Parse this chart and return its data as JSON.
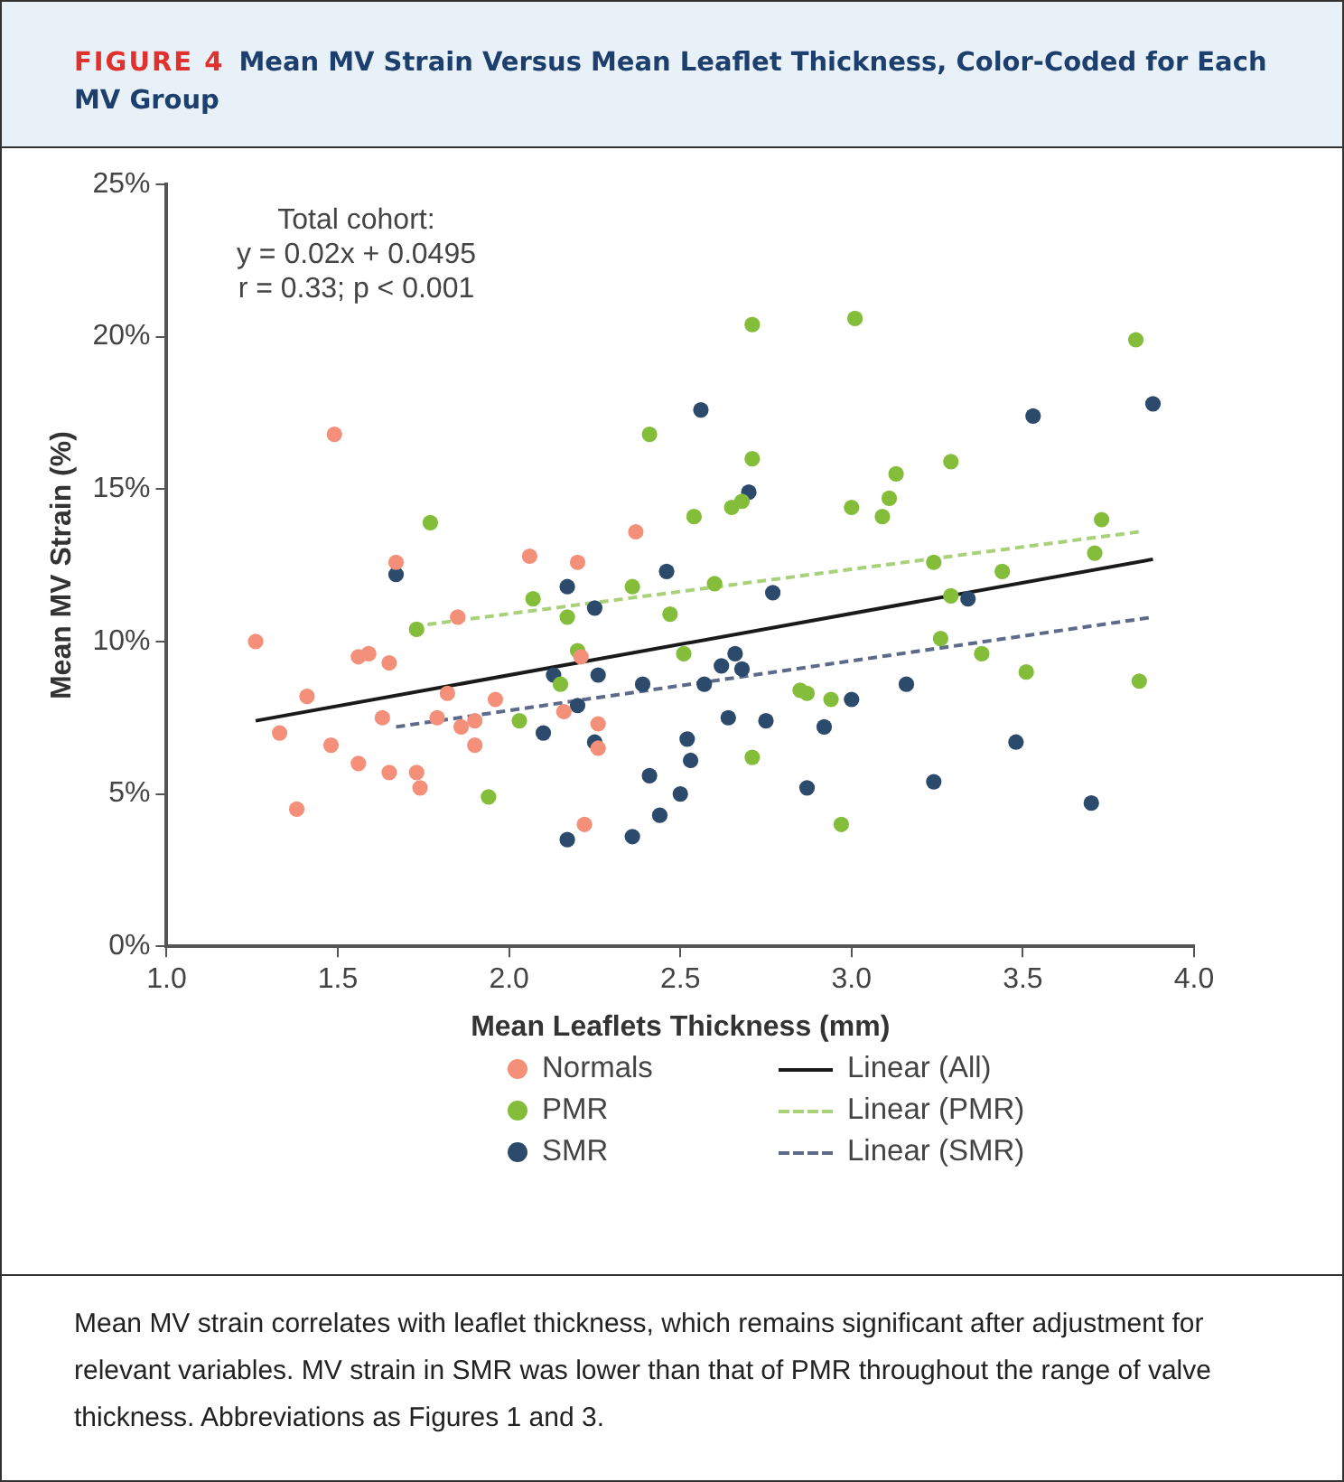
{
  "chart_data": {
    "type": "scatter",
    "title": "FIGURE 4",
    "subtitle": "Mean MV Strain Versus Mean Leaflet Thickness, Color-Coded for Each MV Group",
    "xlabel": "Mean Leaflets Thickness (mm)",
    "ylabel": "Mean MV Strain (%)",
    "xlim": [
      1,
      4
    ],
    "xticks": [
      {
        "value": 1,
        "label": "1.0"
      },
      {
        "value": 1.5,
        "label": "1.5"
      },
      {
        "value": 2,
        "label": "2.0"
      },
      {
        "value": 2.5,
        "label": "2.5"
      },
      {
        "value": 3,
        "label": "3.0"
      },
      {
        "value": 3.5,
        "label": "3.5"
      },
      {
        "value": 4,
        "label": "4.0"
      }
    ],
    "ylim": [
      0,
      25
    ],
    "yticks": [
      {
        "value": 0,
        "label": "0%"
      },
      {
        "value": 5,
        "label": "5%"
      },
      {
        "value": 10,
        "label": "10%"
      },
      {
        "value": 15,
        "label": "15%"
      },
      {
        "value": 20,
        "label": "20%"
      },
      {
        "value": 25,
        "label": "25%"
      }
    ],
    "grid": false,
    "legend": "bottom",
    "annotations": [
      "Total cohort:\ny = 0.02x + 0.0495\nr = 0.33; p < 0.001",
      "Mean MV strain correlates with leaflet thickness, which remains significant after adjustment for relevant variables. MV strain in SMR was lower than that of PMR throughout the range of valve thickness. Abbreviations as Figures 1 and 3."
    ],
    "series": [
      {
        "name": "Normals",
        "marker": "circle",
        "color": "#f4907a",
        "x": [
          1.26,
          1.33,
          1.38,
          1.41,
          1.48,
          1.49,
          1.56,
          1.59,
          1.56,
          1.65,
          1.63,
          1.65,
          1.67,
          1.73,
          1.74,
          1.79,
          1.82,
          1.85,
          1.86,
          1.9,
          1.9,
          1.96,
          2.06,
          2.2,
          2.16,
          2.21,
          2.26,
          2.26,
          2.22,
          2.37
        ],
        "values": [
          10.0,
          7.0,
          4.5,
          8.2,
          6.6,
          16.8,
          9.5,
          9.6,
          6.0,
          9.3,
          7.5,
          5.7,
          12.6,
          5.7,
          5.2,
          7.5,
          8.3,
          10.8,
          7.2,
          7.4,
          6.6,
          8.1,
          12.8,
          12.6,
          7.7,
          9.5,
          7.3,
          6.5,
          4.0,
          13.6
        ]
      },
      {
        "name": "Linear (All)",
        "type": "line",
        "color": "#1a1a1a",
        "line_style": "solid",
        "marker": "none",
        "x": [
          1.26,
          3.88
        ],
        "values": [
          7.4,
          12.7
        ]
      },
      {
        "name": "PMR",
        "marker": "circle",
        "color": "#84bd3a",
        "x": [
          1.77,
          1.73,
          1.94,
          2.03,
          2.07,
          2.17,
          2.2,
          2.15,
          2.36,
          2.41,
          2.47,
          2.51,
          2.54,
          2.6,
          2.65,
          2.68,
          2.71,
          2.71,
          2.71,
          2.85,
          2.87,
          2.94,
          2.97,
          3.0,
          3.01,
          3.09,
          3.11,
          3.13,
          3.24,
          3.26,
          3.29,
          3.29,
          3.38,
          3.44,
          3.51,
          3.71,
          3.73,
          3.83,
          3.84
        ],
        "values": [
          13.9,
          10.4,
          4.9,
          7.4,
          11.4,
          10.8,
          9.7,
          8.6,
          11.8,
          16.8,
          10.9,
          9.6,
          14.1,
          11.9,
          14.4,
          14.6,
          16.0,
          20.4,
          6.2,
          8.4,
          8.3,
          8.1,
          4.0,
          14.4,
          20.6,
          14.1,
          14.7,
          15.5,
          12.6,
          10.1,
          15.9,
          11.5,
          9.6,
          12.3,
          9.0,
          12.9,
          14.0,
          19.9,
          8.7
        ]
      },
      {
        "name": "Linear (PMR)",
        "type": "line",
        "color": "#a9d17a",
        "line_style": "dashed",
        "marker": "none",
        "x": [
          1.72,
          3.84
        ],
        "values": [
          10.5,
          13.6
        ]
      },
      {
        "name": "SMR",
        "marker": "circle",
        "color": "#2c4a6b",
        "x": [
          1.67,
          2.17,
          2.25,
          2.13,
          2.26,
          2.2,
          2.1,
          2.25,
          2.17,
          2.36,
          2.44,
          2.41,
          2.39,
          2.46,
          2.56,
          2.5,
          2.53,
          2.52,
          2.57,
          2.62,
          2.64,
          2.66,
          2.68,
          2.7,
          2.75,
          2.77,
          2.87,
          2.92,
          3.0,
          3.16,
          3.24,
          3.34,
          3.48,
          3.53,
          3.7,
          3.88
        ],
        "values": [
          12.2,
          11.8,
          11.1,
          8.9,
          8.9,
          7.9,
          7.0,
          6.7,
          3.5,
          3.6,
          4.3,
          5.6,
          8.6,
          12.3,
          17.6,
          5.0,
          6.1,
          6.8,
          8.6,
          9.2,
          7.5,
          9.6,
          9.1,
          14.9,
          7.4,
          11.6,
          5.2,
          7.2,
          8.1,
          8.6,
          5.4,
          11.4,
          6.7,
          17.4,
          4.7,
          17.8
        ]
      },
      {
        "name": "Linear (SMR)",
        "type": "line",
        "color": "#5d6a8a",
        "line_style": "dashed",
        "marker": "none",
        "x": [
          1.67,
          3.88
        ],
        "values": [
          7.2,
          10.8
        ]
      }
    ]
  }
}
